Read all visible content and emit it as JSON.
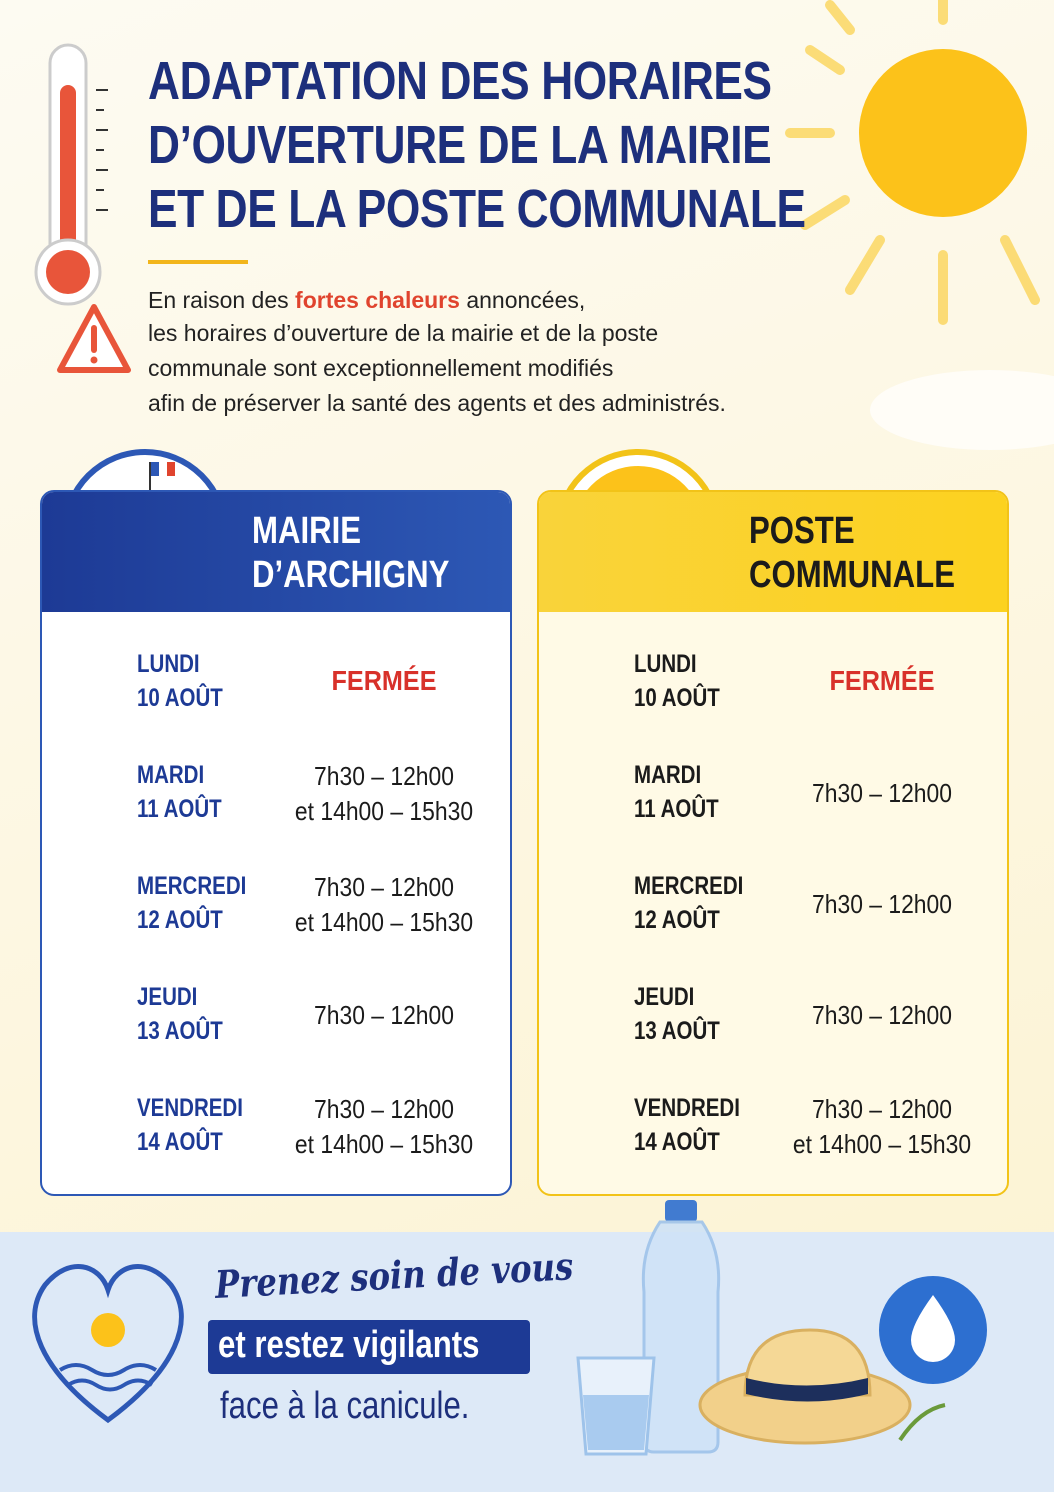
{
  "header": {
    "title": [
      "ADAPTATION DES HORAIRES",
      "D’OUVERTURE DE LA MAIRIE",
      "ET DE LA POSTE COMMUNALE"
    ],
    "intro": {
      "first_line": [
        "En raison des ",
        "fortes chaleurs",
        " annoncées,"
      ],
      "lines": [
        "les horaires d’ouverture de la mairie et de la poste",
        "communale sont exceptionnellement modifiés",
        "afin de préserver la santé des agents et des administrés."
      ]
    }
  },
  "cards": [
    {
      "title": [
        "MAIRIE",
        "D’ARCHIGNY"
      ],
      "rows": [
        {
          "day": "LUNDI",
          "date": "10 AOÛT",
          "status": "FERMÉE"
        },
        {
          "day": "MARDI",
          "date": "11 AOÛT",
          "hours": [
            "7h30 – 12h00",
            "et 14h00 – 15h30"
          ]
        },
        {
          "day": "MERCREDI",
          "date": "12 AOÛT",
          "hours": [
            "7h30 – 12h00",
            "et 14h00 – 15h30"
          ]
        },
        {
          "day": "JEUDI",
          "date": "13 AOÛT",
          "hours": [
            "7h30 – 12h00"
          ]
        },
        {
          "day": "VENDREDI",
          "date": "14 AOÛT",
          "hours": [
            "7h30 – 12h00",
            "et 14h00 – 15h30"
          ]
        }
      ]
    },
    {
      "title": [
        "POSTE",
        "COMMUNALE"
      ],
      "rows": [
        {
          "day": "LUNDI",
          "date": "10 AOÛT",
          "status": "FERMÉE"
        },
        {
          "day": "MARDI",
          "date": "11 AOÛT",
          "hours": [
            "7h30 – 12h00"
          ]
        },
        {
          "day": "MERCREDI",
          "date": "12 AOÛT",
          "hours": [
            "7h30 – 12h00"
          ]
        },
        {
          "day": "JEUDI",
          "date": "13 AOÛT",
          "hours": [
            "7h30 – 12h00"
          ]
        },
        {
          "day": "VENDREDI",
          "date": "14 AOÛT",
          "hours": [
            "7h30 – 12h00",
            "et 14h00 – 15h30"
          ]
        }
      ]
    }
  ],
  "footer": {
    "lines": [
      "Prenez soin de vous",
      "et restez vigilants",
      "face à la canicule."
    ]
  }
}
